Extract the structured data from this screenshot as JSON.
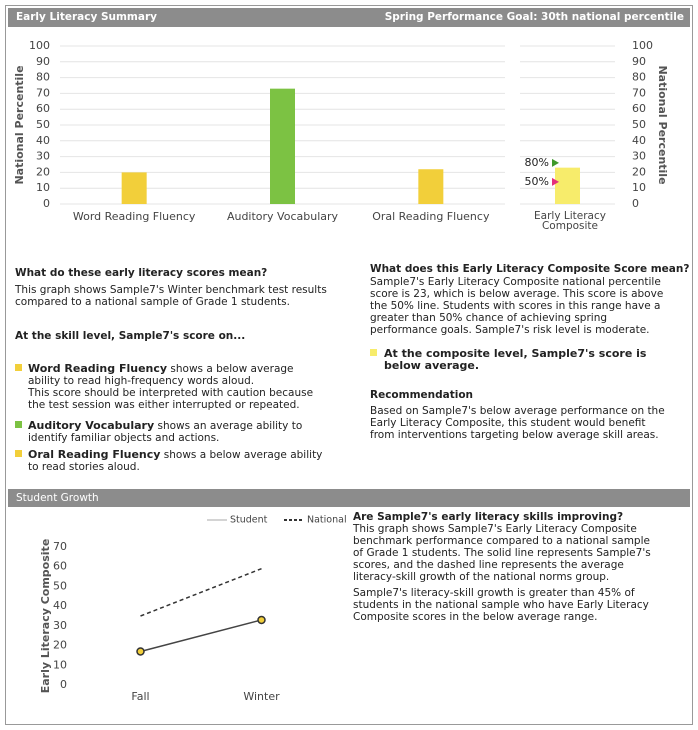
{
  "header": {
    "title": "Early Literacy Summary",
    "goal": "Spring Performance Goal: 30th national percentile"
  },
  "chart_data": [
    {
      "type": "bar",
      "ylabel": "National Percentile",
      "categories": [
        "Word Reading Fluency",
        "Auditory Vocabulary",
        "Oral Reading Fluency"
      ],
      "values": [
        20,
        73,
        22
      ],
      "colors": [
        "#f2cf3a",
        "#7cc243",
        "#f2cf3a"
      ],
      "ylim": [
        0,
        100
      ],
      "yticks": [
        0,
        10,
        20,
        30,
        40,
        50,
        60,
        70,
        80,
        90,
        100
      ],
      "grid": true
    },
    {
      "type": "bar",
      "y2label": "National Percentile",
      "categories": [
        "Early Literacy Composite"
      ],
      "values": [
        23
      ],
      "colors": [
        "#f7ec6b"
      ],
      "y2lim": [
        0,
        100
      ],
      "y2ticks": [
        0,
        10,
        20,
        30,
        40,
        50,
        60,
        70,
        80,
        90,
        100
      ],
      "grid": true,
      "markers": [
        {
          "label": "80%",
          "value": 26,
          "color": "#3f9a2c"
        },
        {
          "label": "50%",
          "value": 14,
          "color": "#e3307d"
        }
      ]
    },
    {
      "type": "line",
      "ylabel": "Early Literacy Composite",
      "categories": [
        "Fall",
        "Winter"
      ],
      "series": [
        {
          "name": "Student",
          "color": "#444444",
          "values": [
            17,
            33
          ]
        },
        {
          "name": "National",
          "color": "#333333",
          "dash": true,
          "values": [
            35,
            59
          ]
        }
      ],
      "ylim": [
        0,
        70
      ],
      "yticks": [
        0,
        10,
        20,
        30,
        40,
        50,
        60,
        70
      ],
      "legend": "top-right"
    }
  ],
  "scores": {
    "question": "What do these early literacy scores mean?",
    "intro": "This graph shows Sample7's Winter benchmark test results compared to a national sample of Grade 1 students.",
    "skill_heading": "At the skill level, Sample7's score on...",
    "items": [
      {
        "term": "Word Reading Fluency",
        "text": "shows a below average ability to read high-frequency words aloud.",
        "note": "This score should be interpreted with caution because the test session was either interrupted or repeated.",
        "color": "#f2cf3a"
      },
      {
        "term": "Auditory Vocabulary",
        "text": "shows an average ability to identify familiar objects and actions.",
        "color": "#7cc243"
      },
      {
        "term": "Oral Reading Fluency",
        "text": "shows a below average ability to read stories aloud.",
        "color": "#f2cf3a"
      }
    ]
  },
  "composite": {
    "question": "What does this Early Literacy Composite Score mean?",
    "text": "Sample7's Early Literacy Composite national percentile score is 23, which is below average. This score is above the 50% line. Students with scores in this range have a greater than 50% chance of achieving spring performance goals. Sample7's risk level is moderate.",
    "level": "At the composite level, Sample7's score is below average.",
    "level_color": "#f7ec6b",
    "rec_heading": "Recommendation",
    "rec_text": "Based on Sample7's below average performance on the Early Literacy Composite, this student would benefit from interventions targeting below average skill areas."
  },
  "growth": {
    "header": "Student Growth",
    "question": "Are Sample7's early literacy skills improving?",
    "paragraphs": [
      "This graph shows Sample7's Early Literacy Composite benchmark performance compared to a national sample of Grade 1 students. The solid line represents Sample7's scores, and the dashed line represents the average literacy-skill growth of the national norms group.",
      "Sample7's literacy-skill growth is greater than 45% of students in the national sample who have Early Literacy Composite scores in the below average range."
    ]
  }
}
